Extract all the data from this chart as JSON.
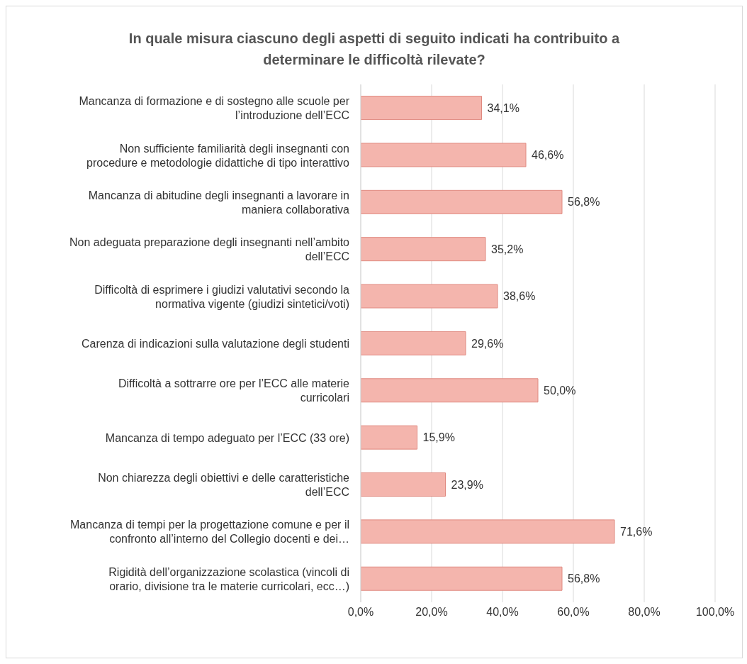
{
  "chart_data": {
    "type": "bar",
    "orientation": "horizontal",
    "title": "In quale misura ciascuno degli aspetti di seguito indicati ha contribuito a determinare le difficoltà rilevate?",
    "categories": [
      "Mancanza di formazione e di sostegno alle scuole per l’introduzione dell’ECC",
      "Non sufficiente familiarità degli insegnanti con procedure e metodologie didattiche di tipo interattivo",
      "Mancanza di abitudine degli insegnanti a lavorare in maniera collaborativa",
      "Non adeguata preparazione degli insegnanti nell’ambito dell’ECC",
      "Difficoltà di esprimere i giudizi valutativi secondo la normativa vigente (giudizi sintetici/voti)",
      "Carenza di indicazioni sulla valutazione degli studenti",
      "Difficoltà a sottrarre ore per l’ECC alle materie curricolari",
      "Mancanza di tempo adeguato per l’ECC (33 ore)",
      "Non chiarezza degli obiettivi e delle caratteristiche dell’ECC",
      "Mancanza di tempi per la progettazione comune e per il confronto all’interno del Collegio docenti e dei…",
      "Rigidità dell’organizzazione scolastica (vincoli di orario, divisione tra le materie curricolari, ecc…)"
    ],
    "values": [
      34.1,
      46.6,
      56.8,
      35.2,
      38.6,
      29.6,
      50.0,
      15.9,
      23.9,
      71.6,
      56.8
    ],
    "value_labels": [
      "34,1%",
      "46,6%",
      "56,8%",
      "35,2%",
      "38,6%",
      "29,6%",
      "50,0%",
      "15,9%",
      "23,9%",
      "71,6%",
      "56,8%"
    ],
    "color": "#f4b5ad",
    "xlim": [
      0,
      100
    ],
    "xticks": [
      {
        "value": 0,
        "label": "0,0%"
      },
      {
        "value": 20,
        "label": "20,0%"
      },
      {
        "value": 40,
        "label": "40,0%"
      },
      {
        "value": 60,
        "label": "60,0%"
      },
      {
        "value": 80,
        "label": "80,0%"
      },
      {
        "value": 100,
        "label": "100,0%"
      }
    ],
    "grid": "x",
    "legend": false
  }
}
